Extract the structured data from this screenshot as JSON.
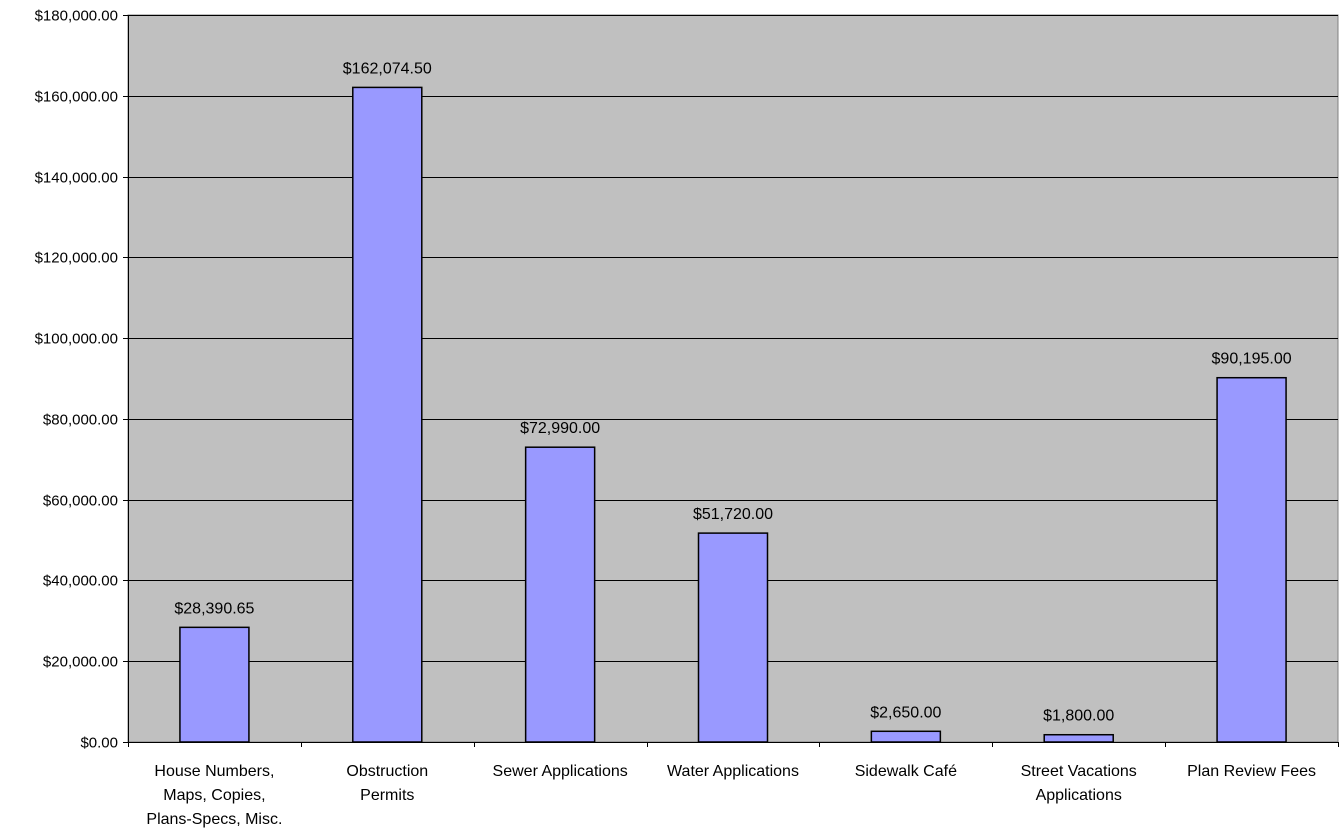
{
  "chart_data": {
    "type": "bar",
    "categories": [
      [
        "House Numbers,",
        "Maps, Copies,",
        "Plans-Specs, Misc."
      ],
      [
        "Obstruction",
        "Permits"
      ],
      [
        "Sewer Applications"
      ],
      [
        "Water Applications"
      ],
      [
        "Sidewalk Café"
      ],
      [
        "Street Vacations",
        "Applications"
      ],
      [
        "Plan Review Fees"
      ]
    ],
    "values": [
      28390.65,
      162074.5,
      72990.0,
      51720.0,
      2650.0,
      1800.0,
      90195.0
    ],
    "data_labels": [
      "$28,390.65",
      "$162,074.50",
      "$72,990.00",
      "$51,720.00",
      "$2,650.00",
      "$1,800.00",
      "$90,195.00"
    ],
    "y_ticks": [
      0,
      20000,
      40000,
      60000,
      80000,
      100000,
      120000,
      140000,
      160000,
      180000
    ],
    "y_tick_labels": [
      "$0.00",
      "$20,000.00",
      "$40,000.00",
      "$60,000.00",
      "$80,000.00",
      "$100,000.00",
      "$120,000.00",
      "$140,000.00",
      "$160,000.00",
      "$180,000.00"
    ],
    "ylim": [
      0,
      180000
    ],
    "title": "",
    "xlabel": "",
    "ylabel": "",
    "grid": true,
    "legend": "none",
    "colors": {
      "plot_background": "#c0c0c0",
      "bar_fill": "#9999ff",
      "bar_stroke": "#000000",
      "gridline": "#000000"
    }
  }
}
